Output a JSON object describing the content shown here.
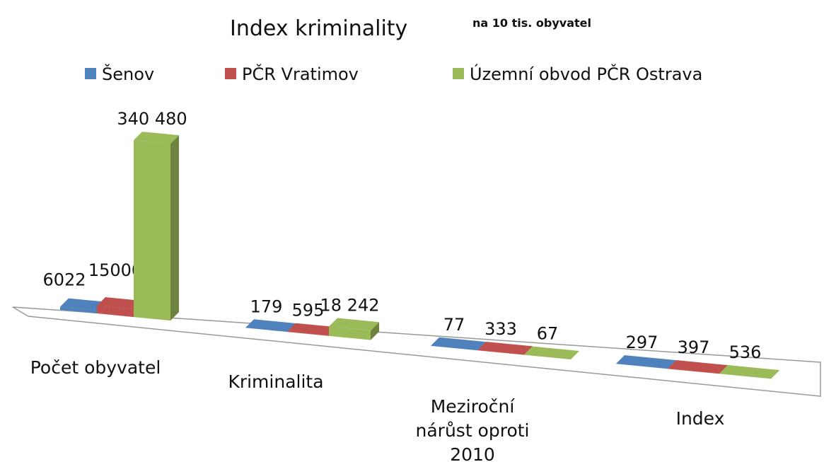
{
  "chart_data": {
    "type": "bar3d",
    "title": "Index kriminality",
    "subtitle": "na 10 tis. obyvatel",
    "categories": [
      "Počet obyvatel",
      "Kriminalita",
      "Meziroční nárůst oproti 2010",
      "Index"
    ],
    "series": [
      {
        "name": "Šenov",
        "color": "#4f81bd",
        "values": [
          6022,
          179,
          77,
          297
        ]
      },
      {
        "name": "PČR Vratimov",
        "color": "#c0504d",
        "values": [
          15000,
          595,
          333,
          397
        ]
      },
      {
        "name": "Územní obvod PČR Ostrava",
        "color": "#9bbb59",
        "values": [
          340480,
          18242,
          67,
          536
        ],
        "value_labels": [
          "340 480",
          "18 242",
          "67",
          "536"
        ]
      }
    ]
  }
}
